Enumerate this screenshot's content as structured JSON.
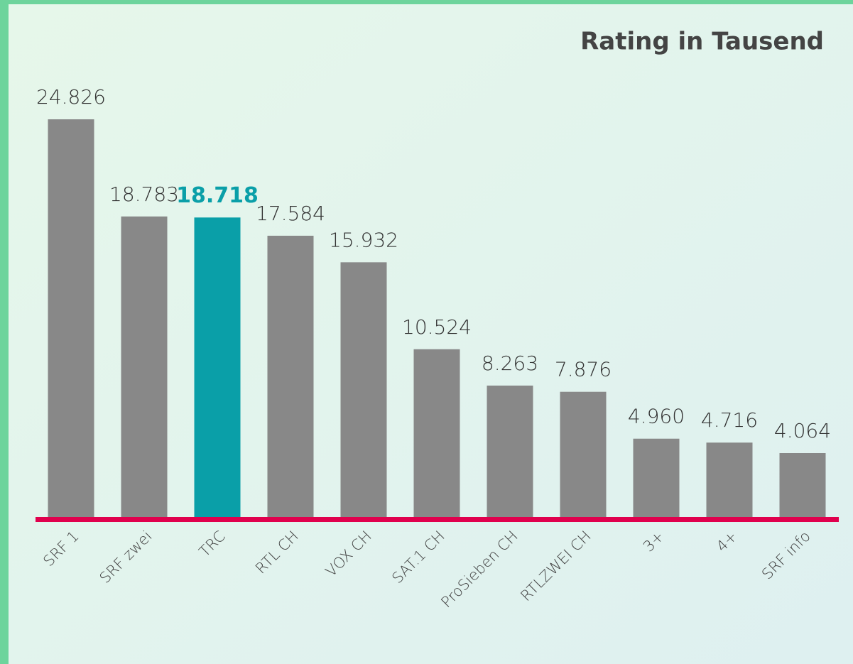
{
  "chart_data": {
    "type": "bar",
    "title": "Rating in Tausend",
    "categories": [
      "SRF 1",
      "SRF zwei",
      "TRC",
      "RTL CH",
      "VOX CH",
      "SAT.1 CH",
      "ProSieben CH",
      "RTLZWEI CH",
      "3+",
      "4+",
      "SRF info"
    ],
    "values": [
      24826,
      18783,
      18718,
      17584,
      15932,
      10524,
      8263,
      7876,
      4960,
      4716,
      4064
    ],
    "value_labels": [
      "24.826",
      "18.783",
      "18.718",
      "17.584",
      "15.932",
      "10.524",
      "8.263",
      "7.876",
      "4.960",
      "4.716",
      "4.064"
    ],
    "color": "#888888",
    "colors": [
      "#888888",
      "#888888",
      "#0a9fa8",
      "#888888",
      "#888888",
      "#888888",
      "#888888",
      "#888888",
      "#888888",
      "#888888",
      "#888888"
    ],
    "baseline_color": "#e0004d"
  }
}
